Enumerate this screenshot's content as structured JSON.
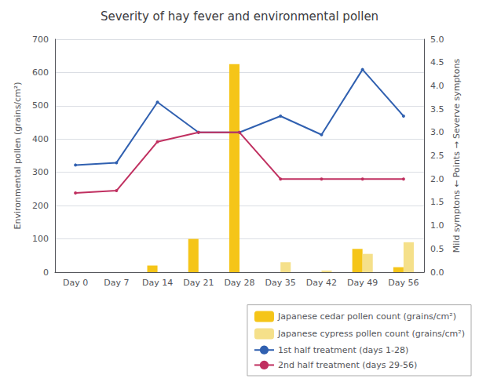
{
  "chart_data": {
    "type": "bar",
    "title": "Severity of hay fever and environmental pollen",
    "categories": [
      "Day 0",
      "Day 7",
      "Day 14",
      "Day 21",
      "Day 28",
      "Day 35",
      "Day 42",
      "Day 49",
      "Day 56"
    ],
    "series": [
      {
        "name": "Japanese cedar pollen count (grains/cm²)",
        "type": "bar",
        "color": "#F5C518",
        "values": [
          0,
          0,
          20,
          100,
          625,
          0,
          0,
          70,
          15
        ]
      },
      {
        "name": "Japanese cypress pollen count (grains/cm²)",
        "type": "bar",
        "color": "#F5E08A",
        "values": [
          0,
          0,
          0,
          0,
          0,
          30,
          5,
          55,
          90
        ]
      },
      {
        "name": "1st half treatment (days 1-28)",
        "type": "line",
        "color": "#3060B0",
        "axis": "y2",
        "values": [
          2.3,
          2.35,
          3.65,
          3.0,
          3.0,
          3.35,
          2.95,
          4.35,
          3.35
        ]
      },
      {
        "name": "2nd half treatment (days 29-56)",
        "type": "line",
        "color": "#C03060",
        "axis": "y2",
        "values": [
          1.7,
          1.75,
          2.8,
          3.0,
          3.0,
          2.0,
          2.0,
          2.0,
          2.0
        ]
      }
    ],
    "ylabel": "Environmental pollen (grains/cm²)",
    "y2label": "Mild symptons ← Points → Severve symptons",
    "ylim": [
      0,
      700
    ],
    "yticks": [
      0,
      100,
      200,
      300,
      400,
      500,
      600,
      700
    ],
    "y2lim": [
      0,
      5.0
    ],
    "y2ticks": [
      {
        "value": 0,
        "label": "0.0"
      },
      0.5,
      {
        "value": 1,
        "label": "1.0"
      },
      1.5,
      {
        "value": 2,
        "label": "2.0"
      },
      2.5,
      {
        "value": 3,
        "label": "3.0"
      },
      3.5,
      {
        "value": 4,
        "label": "4.0"
      },
      4.5,
      {
        "value": 5,
        "label": "5.0"
      }
    ],
    "grid": true,
    "legend": "lower right"
  }
}
